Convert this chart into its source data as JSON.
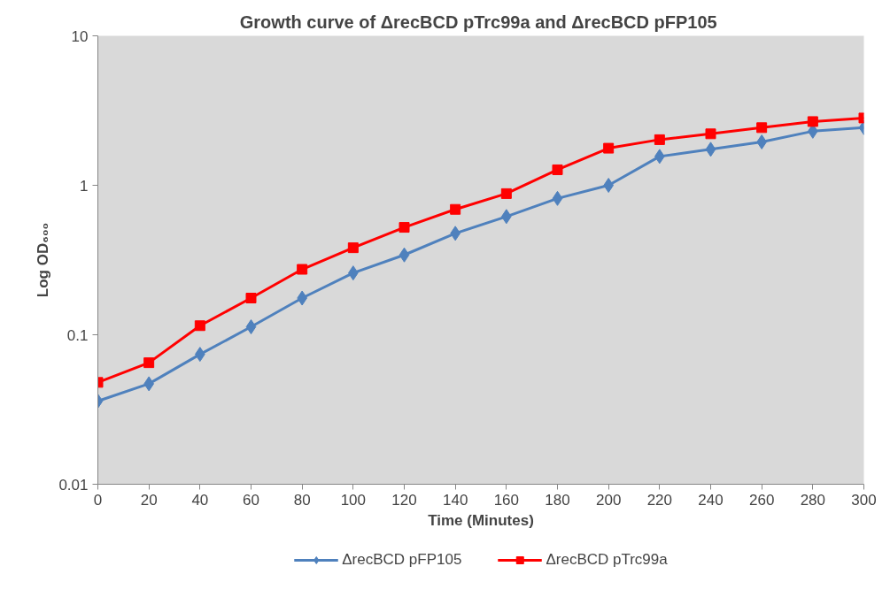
{
  "chart_data": {
    "type": "line",
    "title": "Growth curve of  ΔrecBCD pTrc99a and ΔrecBCD pFP105",
    "xlabel": "Time (Minutes)",
    "ylabel": "Log OD₆₀₀",
    "x": [
      0,
      20,
      40,
      60,
      80,
      100,
      120,
      140,
      160,
      180,
      200,
      220,
      240,
      260,
      280,
      300
    ],
    "series": [
      {
        "name": "ΔrecBCD pFP105",
        "color": "#4f81bd",
        "marker": "diamond",
        "values": [
          0.036,
          0.047,
          0.074,
          0.113,
          0.176,
          0.259,
          0.342,
          0.477,
          0.618,
          0.817,
          1.0,
          1.56,
          1.74,
          1.95,
          2.3,
          2.43
        ]
      },
      {
        "name": "ΔrecBCD pTrc99a",
        "color": "#ff0000",
        "marker": "square",
        "values": [
          0.048,
          0.065,
          0.115,
          0.176,
          0.274,
          0.382,
          0.523,
          0.69,
          0.88,
          1.27,
          1.77,
          2.02,
          2.21,
          2.43,
          2.67,
          2.82
        ]
      }
    ],
    "log": "y",
    "xlim": [
      0,
      300
    ],
    "ylim": [
      0.01,
      10
    ],
    "xticks": [
      0,
      20,
      40,
      60,
      80,
      100,
      120,
      140,
      160,
      180,
      200,
      220,
      240,
      260,
      280,
      300
    ],
    "yticks": [
      0.01,
      0.1,
      1,
      10
    ],
    "grid": false,
    "legend": "bottom",
    "line_style": "solid"
  }
}
